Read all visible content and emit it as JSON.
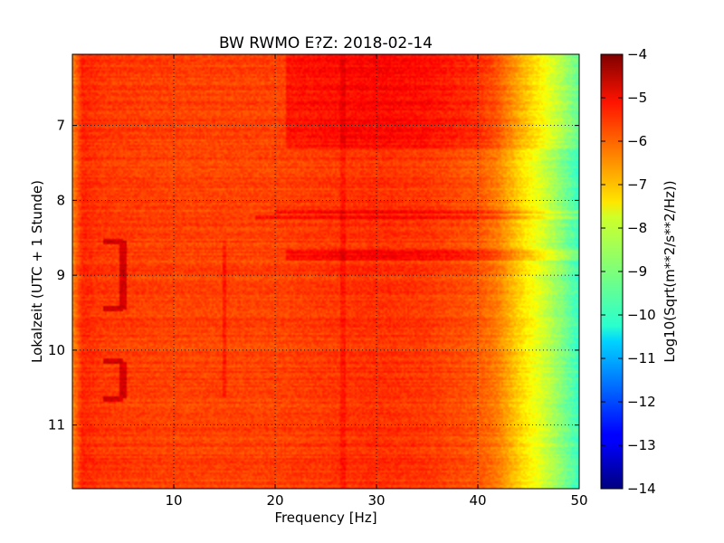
{
  "chart_data": {
    "type": "heatmap",
    "title": "BW RWMO E?Z: 2018-02-14",
    "xlabel": "Frequency [Hz]",
    "ylabel": "Lokalzeit (UTC + 1 Stunde)",
    "xlim": [
      0,
      50
    ],
    "ylim": [
      11.85,
      6.05
    ],
    "x_ticks": [
      10,
      20,
      30,
      40,
      50
    ],
    "x_tick_labels": [
      "10",
      "20",
      "30",
      "40",
      "50"
    ],
    "y_ticks": [
      7,
      8,
      9,
      10,
      11
    ],
    "y_tick_labels": [
      "7",
      "8",
      "9",
      "10",
      "11"
    ],
    "grid": true,
    "colormap": "jet",
    "colorbar": {
      "label": "Log10(Sqrt(m**2/s**2/Hz))",
      "range": [
        -14,
        -4
      ],
      "ticks": [
        -4,
        -5,
        -6,
        -7,
        -8,
        -9,
        -10,
        -11,
        -12,
        -13,
        -14
      ],
      "tick_labels": [
        "−4",
        "−5",
        "−6",
        "−7",
        "−8",
        "−9",
        "−10",
        "−11",
        "−12",
        "−13",
        "−14"
      ]
    },
    "spectral_profile": {
      "frequency_hz": [
        0,
        1,
        3,
        10,
        20,
        25,
        30,
        35,
        40,
        42,
        44,
        46,
        48,
        50
      ],
      "level": [
        -6.6,
        -5.6,
        -5.8,
        -5.9,
        -5.9,
        -5.8,
        -5.7,
        -5.8,
        -6.1,
        -6.5,
        -7.3,
        -8.0,
        -8.8,
        -9.7
      ]
    },
    "time_features": [
      {
        "kind": "band",
        "time": [
          6.05,
          7.3
        ],
        "frequency_hz": [
          21,
          50
        ],
        "delta": 0.4
      },
      {
        "kind": "band",
        "time": [
          8.13,
          8.17
        ],
        "frequency_hz": [
          20,
          50
        ],
        "delta": 0.6
      },
      {
        "kind": "band",
        "time": [
          8.2,
          8.24
        ],
        "frequency_hz": [
          18,
          50
        ],
        "delta": 0.5
      },
      {
        "kind": "band",
        "time": [
          8.65,
          8.8
        ],
        "frequency_hz": [
          21,
          50
        ],
        "delta": 0.5
      },
      {
        "kind": "line",
        "time": [
          6.05,
          11.85
        ],
        "frequency_hz": [
          26.5,
          27
        ],
        "delta": 0.3
      },
      {
        "kind": "bracket",
        "time": [
          8.55,
          9.45
        ],
        "frequency_hz": [
          3,
          5
        ],
        "delta": 1.0
      },
      {
        "kind": "bracket",
        "time": [
          10.15,
          10.65
        ],
        "frequency_hz": [
          3,
          5
        ],
        "delta": 1.0
      },
      {
        "kind": "line",
        "time": [
          8.55,
          10.65
        ],
        "frequency_hz": [
          14.8,
          15.2
        ],
        "delta": 0.4
      }
    ]
  }
}
